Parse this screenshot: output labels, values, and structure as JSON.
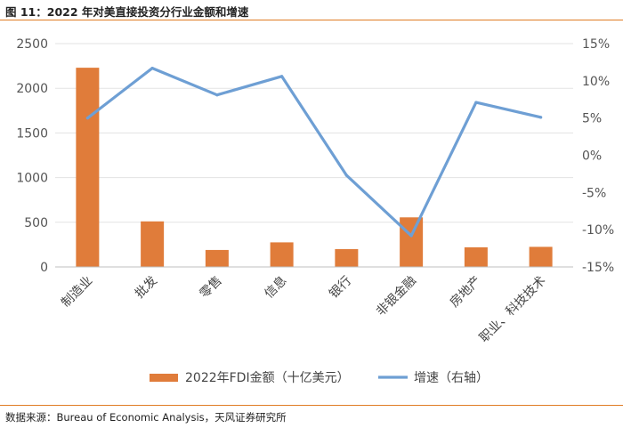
{
  "header": {
    "title": "图 11：2022 年对美直接投资分行业金额和增速"
  },
  "footer": {
    "source": "数据来源：Bureau of Economic Analysis，天风证券研究所"
  },
  "colors": {
    "bar": "#E07C3A",
    "line": "#6E9FD4",
    "accent_rule": "#E07C24",
    "axis": "#BFBFBF",
    "grid": "#E3E3E3"
  },
  "chart_data": {
    "type": "bar+line",
    "categories": [
      "制造业",
      "批发",
      "零售",
      "信息",
      "银行",
      "非银金融",
      "房地产",
      "职业、科技技术"
    ],
    "series": [
      {
        "name": "2022年FDI金额（十亿美元）",
        "type": "bar",
        "axis": "left",
        "values": [
          2230,
          510,
          190,
          275,
          200,
          555,
          220,
          225
        ]
      },
      {
        "name": "增速（右轴）",
        "type": "line",
        "axis": "right",
        "values": [
          5,
          11.7,
          8.1,
          10.6,
          -2.7,
          -10.8,
          7.1,
          5.1
        ]
      }
    ],
    "y_left": {
      "lim": [
        0,
        2500
      ],
      "ticks": [
        "0",
        "500",
        "1000",
        "1500",
        "2000",
        "2500"
      ]
    },
    "y_right": {
      "lim": [
        -15,
        15
      ],
      "ticks": [
        "-15%",
        "-10%",
        "-5%",
        "0%",
        "5%",
        "10%",
        "15%"
      ]
    },
    "grid": true,
    "legend_position": "bottom"
  }
}
